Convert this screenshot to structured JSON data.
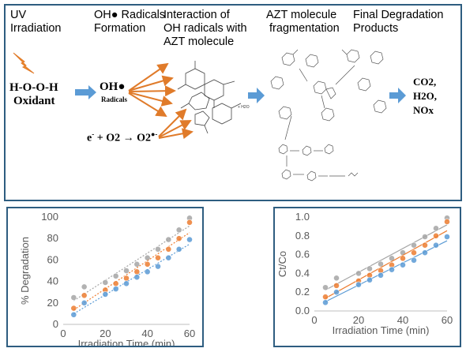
{
  "headers": {
    "uv": "UV\nIrradiation",
    "radicals_formation": "OH● Radicals\nFormation",
    "interaction": "Interaction of\nOH radicals with\nAZT molecule",
    "fragmentation": "AZT molecule\n fragmentation",
    "final": "Final Degradation\nProducts"
  },
  "reaction": {
    "oxidant_formula": "H-O-O-H",
    "oxidant_label": "Oxidant",
    "oh_symbol": "OH●",
    "oh_label": "Radicals",
    "electron_equation_left": "e",
    "electron_superscript": "-",
    "electron_equation_mid": " + O2 → O2",
    "superoxide_superscript": "●-"
  },
  "products": [
    "CO2,",
    "H2O,",
    "NOx"
  ],
  "colors": {
    "panel_border": "#2e5d80",
    "arrow_blue": "#5b9bd5",
    "arrow_orange": "#e07b2a",
    "lightning": "#f28c28",
    "series_gray": "#a5a5a5",
    "series_orange": "#ed7d31",
    "series_blue": "#5b9bd5"
  },
  "chart_data": [
    {
      "type": "scatter",
      "title": "",
      "xlabel": "Irradiation Time (min)",
      "ylabel": "% Degradation",
      "xlim": [
        0,
        60
      ],
      "ylim": [
        0,
        100
      ],
      "xticks": [
        "0",
        "20",
        "40",
        "60"
      ],
      "yticks": [
        "0",
        "20",
        "40",
        "60",
        "80",
        "100"
      ],
      "grid": "none",
      "trendline": "dotted",
      "series": [
        {
          "x": [
            5,
            10,
            20,
            25,
            30,
            35,
            40,
            45,
            50,
            55,
            60
          ],
          "y": [
            25,
            35,
            39,
            45,
            50,
            56,
            62,
            70,
            79,
            88,
            99
          ]
        },
        {
          "x": [
            5,
            10,
            20,
            25,
            30,
            35,
            40,
            45,
            50,
            55,
            60
          ],
          "y": [
            15,
            27,
            32,
            38,
            43,
            49,
            56,
            62,
            70,
            80,
            95
          ]
        },
        {
          "x": [
            5,
            10,
            20,
            25,
            30,
            35,
            40,
            45,
            50,
            55,
            60
          ],
          "y": [
            9,
            20,
            28,
            33,
            38,
            44,
            49,
            54,
            62,
            70,
            79
          ]
        }
      ]
    },
    {
      "type": "scatter",
      "title": "",
      "xlabel": "Irradiation Time (min)",
      "ylabel": "Ct/Co",
      "xlim": [
        0,
        60
      ],
      "ylim": [
        0,
        1.0
      ],
      "xticks": [
        "0",
        "20",
        "40",
        "60"
      ],
      "yticks": [
        "0.0",
        "0.2",
        "0.4",
        "0.6",
        "0.8",
        "1.0"
      ],
      "grid": "none",
      "trendline": "solid",
      "series": [
        {
          "x": [
            5,
            10,
            20,
            25,
            30,
            35,
            40,
            45,
            50,
            55,
            60
          ],
          "y": [
            0.25,
            0.35,
            0.4,
            0.45,
            0.5,
            0.56,
            0.62,
            0.7,
            0.79,
            0.88,
            0.99
          ]
        },
        {
          "x": [
            5,
            10,
            20,
            25,
            30,
            35,
            40,
            45,
            50,
            55,
            60
          ],
          "y": [
            0.15,
            0.27,
            0.32,
            0.38,
            0.43,
            0.49,
            0.56,
            0.62,
            0.7,
            0.8,
            0.95
          ]
        },
        {
          "x": [
            5,
            10,
            20,
            25,
            30,
            35,
            40,
            45,
            50,
            55,
            60
          ],
          "y": [
            0.09,
            0.2,
            0.28,
            0.33,
            0.38,
            0.44,
            0.49,
            0.54,
            0.62,
            0.7,
            0.79
          ]
        }
      ]
    }
  ]
}
